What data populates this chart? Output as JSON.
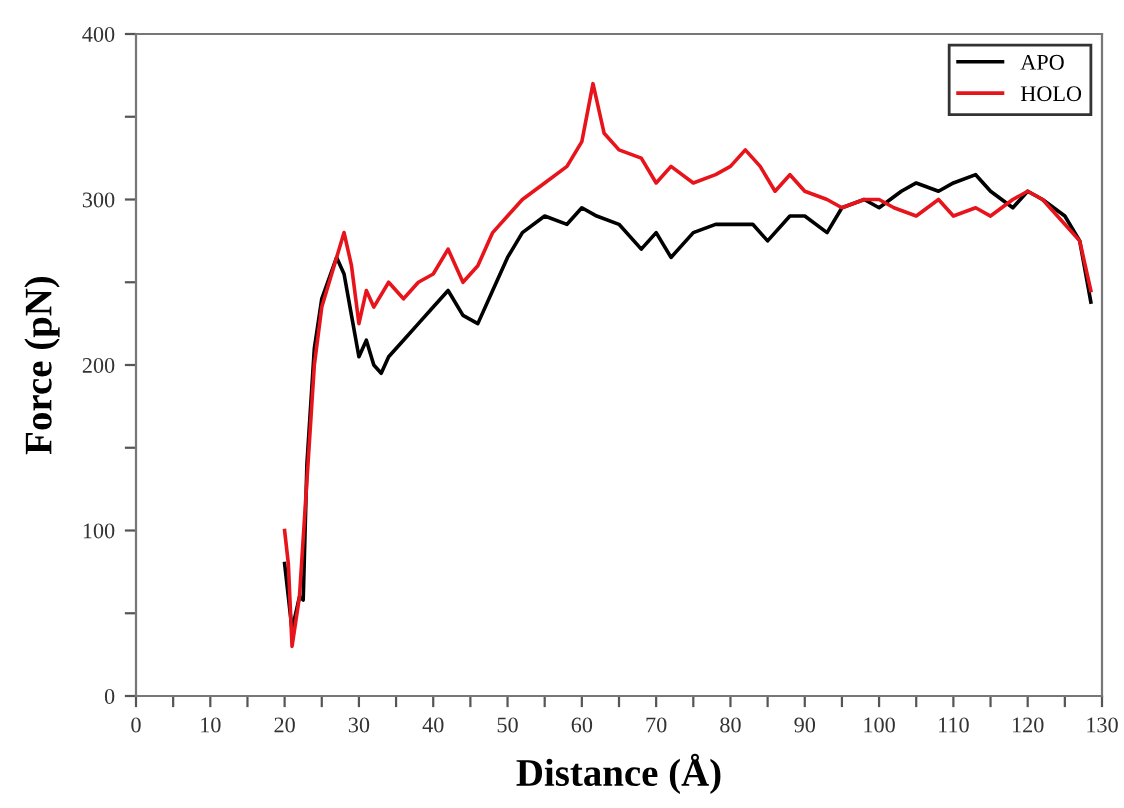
{
  "chart_data": {
    "type": "line",
    "xlabel": "Distance (Å)",
    "ylabel": "Force (pN)",
    "xlim": [
      0,
      130
    ],
    "ylim": [
      0,
      400
    ],
    "xticks": [
      0,
      {
        "value": 5,
        "label": null
      },
      10,
      {
        "value": 15,
        "label": null
      },
      20,
      {
        "value": 25,
        "label": null
      },
      30,
      {
        "value": 35,
        "label": null
      },
      40,
      {
        "value": 45,
        "label": null
      },
      50,
      {
        "value": 55,
        "label": null
      },
      60,
      {
        "value": 65,
        "label": null
      },
      70,
      {
        "value": 75,
        "label": null
      },
      80,
      {
        "value": 85,
        "label": null
      },
      90,
      {
        "value": 95,
        "label": null
      },
      100,
      {
        "value": 105,
        "label": null
      },
      110,
      {
        "value": 115,
        "label": null
      },
      120,
      {
        "value": 125,
        "label": null
      },
      130
    ],
    "yticks": [
      0,
      {
        "value": 50,
        "label": null
      },
      100,
      {
        "value": 150,
        "label": null
      },
      200,
      {
        "value": 250,
        "label": null
      },
      300,
      {
        "value": 350,
        "label": null
      },
      400
    ],
    "grid": false,
    "legend": "top right",
    "marker": "none",
    "line_style": "solid",
    "series": [
      {
        "name": "APO",
        "color": "#000000",
        "x": [
          20,
          21,
          22,
          22.5,
          23,
          24,
          25,
          27,
          28,
          29,
          30,
          31,
          32,
          33,
          34,
          36,
          38,
          40,
          42,
          44,
          46,
          48,
          50,
          52,
          55,
          58,
          60,
          62,
          65,
          68,
          70,
          72,
          75,
          78,
          80,
          83,
          85,
          88,
          90,
          93,
          95,
          98,
          100,
          103,
          105,
          108,
          110,
          113,
          115,
          118,
          120,
          122,
          125,
          127,
          128.5
        ],
        "values": [
          80,
          40,
          60,
          58,
          140,
          210,
          240,
          265,
          255,
          230,
          205,
          215,
          200,
          195,
          205,
          215,
          225,
          235,
          245,
          230,
          225,
          245,
          265,
          280,
          290,
          285,
          295,
          290,
          285,
          270,
          280,
          265,
          280,
          285,
          285,
          285,
          275,
          290,
          290,
          280,
          295,
          300,
          295,
          305,
          310,
          305,
          310,
          315,
          305,
          295,
          305,
          300,
          290,
          275,
          238
        ]
      },
      {
        "name": "HOLO",
        "color": "#e8141b",
        "x": [
          20,
          20.5,
          21,
          22,
          23,
          24,
          25,
          27,
          28,
          29,
          30,
          31,
          32,
          34,
          36,
          38,
          40,
          42,
          44,
          46,
          48,
          50,
          52,
          55,
          58,
          60,
          61.5,
          63,
          65,
          68,
          70,
          72,
          75,
          78,
          80,
          82,
          84,
          86,
          88,
          90,
          93,
          95,
          98,
          100,
          102,
          105,
          108,
          110,
          113,
          115,
          118,
          120,
          122,
          125,
          127,
          128.5
        ],
        "values": [
          100,
          80,
          30,
          60,
          130,
          200,
          235,
          265,
          280,
          260,
          225,
          245,
          235,
          250,
          240,
          250,
          255,
          270,
          250,
          260,
          280,
          290,
          300,
          310,
          320,
          335,
          370,
          340,
          330,
          325,
          310,
          320,
          310,
          315,
          320,
          330,
          320,
          305,
          315,
          305,
          300,
          295,
          300,
          300,
          295,
          290,
          300,
          290,
          295,
          290,
          300,
          305,
          300,
          285,
          275,
          245
        ]
      }
    ]
  }
}
